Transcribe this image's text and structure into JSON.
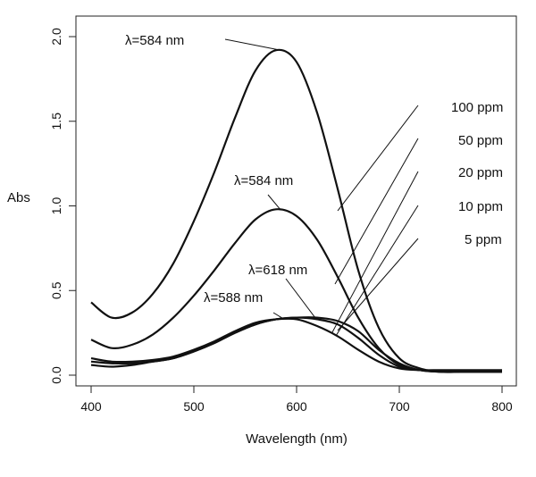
{
  "chart_data": {
    "type": "line",
    "xlabel": "Wavelength (nm)",
    "ylabel": "Abs",
    "xlim": [
      400,
      800
    ],
    "ylim": [
      0,
      2.0
    ],
    "xticks": [
      "400",
      "500",
      "600",
      "700",
      "800"
    ],
    "yticks": [
      "0.0",
      "0.5",
      "1.0",
      "1.5",
      "2.0"
    ],
    "grid": false,
    "x": [
      400,
      420,
      440,
      460,
      480,
      500,
      520,
      540,
      560,
      580,
      600,
      620,
      640,
      660,
      680,
      700,
      720,
      740,
      760,
      780,
      800
    ],
    "series": [
      {
        "name": "100 ppm",
        "values": [
          0.43,
          0.34,
          0.37,
          0.48,
          0.66,
          0.91,
          1.2,
          1.52,
          1.8,
          1.92,
          1.85,
          1.55,
          1.1,
          0.62,
          0.28,
          0.1,
          0.04,
          0.02,
          0.02,
          0.02,
          0.02
        ]
      },
      {
        "name": "50 ppm",
        "values": [
          0.21,
          0.16,
          0.18,
          0.24,
          0.34,
          0.47,
          0.62,
          0.78,
          0.92,
          0.98,
          0.94,
          0.8,
          0.58,
          0.34,
          0.16,
          0.06,
          0.03,
          0.02,
          0.02,
          0.02,
          0.02
        ]
      },
      {
        "name": "20 ppm",
        "values": [
          0.1,
          0.08,
          0.08,
          0.09,
          0.11,
          0.15,
          0.2,
          0.26,
          0.31,
          0.33,
          0.33,
          0.29,
          0.23,
          0.15,
          0.08,
          0.04,
          0.03,
          0.03,
          0.03,
          0.03,
          0.03
        ]
      },
      {
        "name": "10 ppm",
        "values": [
          0.08,
          0.07,
          0.07,
          0.08,
          0.1,
          0.14,
          0.19,
          0.25,
          0.3,
          0.33,
          0.34,
          0.33,
          0.3,
          0.22,
          0.12,
          0.05,
          0.03,
          0.02,
          0.02,
          0.02,
          0.02
        ]
      },
      {
        "name": "5 ppm",
        "values": [
          0.06,
          0.05,
          0.06,
          0.08,
          0.1,
          0.14,
          0.19,
          0.25,
          0.3,
          0.33,
          0.34,
          0.34,
          0.32,
          0.26,
          0.15,
          0.07,
          0.03,
          0.02,
          0.02,
          0.02,
          0.02
        ]
      }
    ],
    "annotations": [
      {
        "text": "λ=584 nm",
        "x": 584,
        "y": 1.92
      },
      {
        "text": "λ=584 nm",
        "x": 584,
        "y": 0.98
      },
      {
        "text": "λ=618 nm",
        "x": 618,
        "y": 0.34
      },
      {
        "text": "λ=588 nm",
        "x": 588,
        "y": 0.33
      }
    ]
  }
}
